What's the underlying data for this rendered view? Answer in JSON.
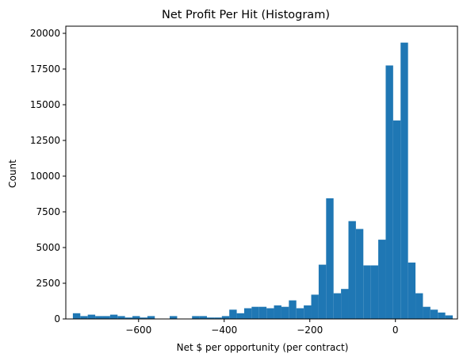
{
  "chart_data": {
    "type": "bar",
    "title": "Net Profit Per Hit (Histogram)",
    "xlabel": "Net $ per opportunity (per contract)",
    "ylabel": "Count",
    "xlim": [
      -770,
      145
    ],
    "ylim": [
      0,
      20500
    ],
    "xticks": [
      -600,
      -400,
      -200,
      0
    ],
    "xtick_labels": [
      "−600",
      "−400",
      "−200",
      "0"
    ],
    "yticks": [
      0,
      2500,
      5000,
      7500,
      10000,
      12500,
      15000,
      17500,
      20000
    ],
    "ytick_labels": [
      "0",
      "2500",
      "5000",
      "7500",
      "10000",
      "12500",
      "15000",
      "17500",
      "20000"
    ],
    "bin_edges": [
      -753.5,
      -736.1,
      -718.7,
      -701.3,
      -683.9,
      -666.5,
      -649.1,
      -631.7,
      -614.3,
      -596.9,
      -579.5,
      -562.1,
      -544.7,
      -527.3,
      -509.9,
      -492.5,
      -475.1,
      -457.7,
      -440.3,
      -422.9,
      -405.5,
      -388.1,
      -370.7,
      -353.3,
      -335.9,
      -318.5,
      -301.1,
      -283.7,
      -266.3,
      -248.9,
      -231.5,
      -214.1,
      -196.7,
      -179.3,
      -161.9,
      -144.5,
      -127.1,
      -109.7,
      -92.3,
      -74.9,
      -57.5,
      -40.1,
      -22.7,
      -5.3,
      12.1,
      29.5,
      46.9,
      64.3,
      81.7,
      99.1,
      116.5,
      133.9
    ],
    "counts": [
      400,
      200,
      300,
      200,
      200,
      300,
      200,
      100,
      200,
      100,
      200,
      0,
      0,
      200,
      0,
      0,
      200,
      200,
      100,
      100,
      200,
      650,
      400,
      750,
      850,
      850,
      750,
      950,
      850,
      1300,
      750,
      950,
      1700,
      3800,
      8450,
      1800,
      2100,
      6850,
      6300,
      3750,
      3750,
      5550,
      17750,
      13900,
      19350,
      3950,
      1800,
      850,
      650,
      450,
      250
    ],
    "color": "#1f77b4",
    "grid": false
  }
}
